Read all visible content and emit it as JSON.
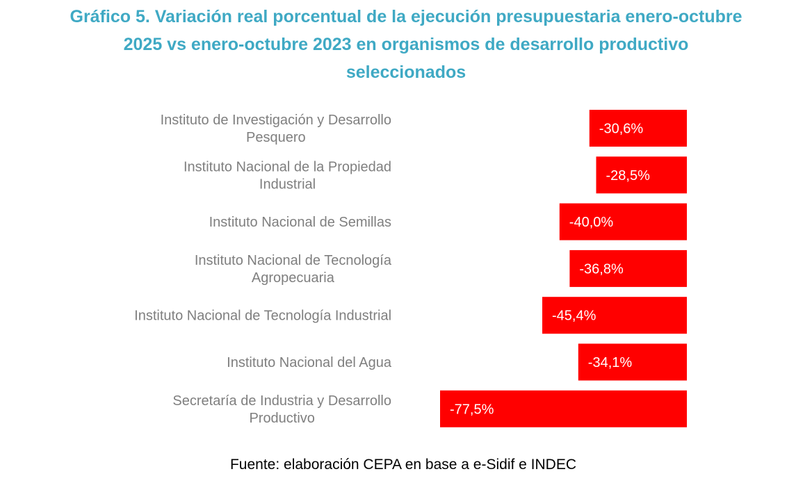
{
  "title_lines": [
    "Gráfico 5. Variación real porcentual de la ejecución presupuestaria enero-octubre",
    "2025 vs enero-octubre 2023 en organismos de desarrollo productivo",
    "seleccionados"
  ],
  "source": "Fuente: elaboración CEPA en base a e-Sidif e INDEC",
  "colors": {
    "bar": "#ff0000",
    "title": "#3fa9c4",
    "category_label": "#7f7f7f",
    "value_label": "#ffffff"
  },
  "chart_data": {
    "type": "bar",
    "orientation": "horizontal",
    "title": "Gráfico 5. Variación real porcentual de la ejecución presupuestaria enero-octubre 2025 vs enero-octubre 2023 en organismos de desarrollo productivo seleccionados",
    "categories": [
      [
        "Instituto de Investigación y Desarrollo",
        "Pesquero"
      ],
      [
        "Instituto Nacional de la Propiedad",
        "Industrial"
      ],
      [
        "Instituto Nacional de Semillas"
      ],
      [
        "Instituto Nacional de Tecnología",
        "Agropecuaria"
      ],
      [
        "Instituto Nacional de Tecnología Industrial"
      ],
      [
        "Instituto Nacional del Agua"
      ],
      [
        "Secretaría de Industria y Desarrollo",
        "Productivo"
      ]
    ],
    "values": [
      -30.6,
      -28.5,
      -40.0,
      -36.8,
      -45.4,
      -34.1,
      -77.5
    ],
    "value_labels": [
      "-30,6%",
      "-28,5%",
      "-40,0%",
      "-36,8%",
      "-45,4%",
      "-34,1%",
      "-77,5%"
    ],
    "xlim": [
      -77.5,
      0
    ],
    "grid": false,
    "legend": "none"
  }
}
